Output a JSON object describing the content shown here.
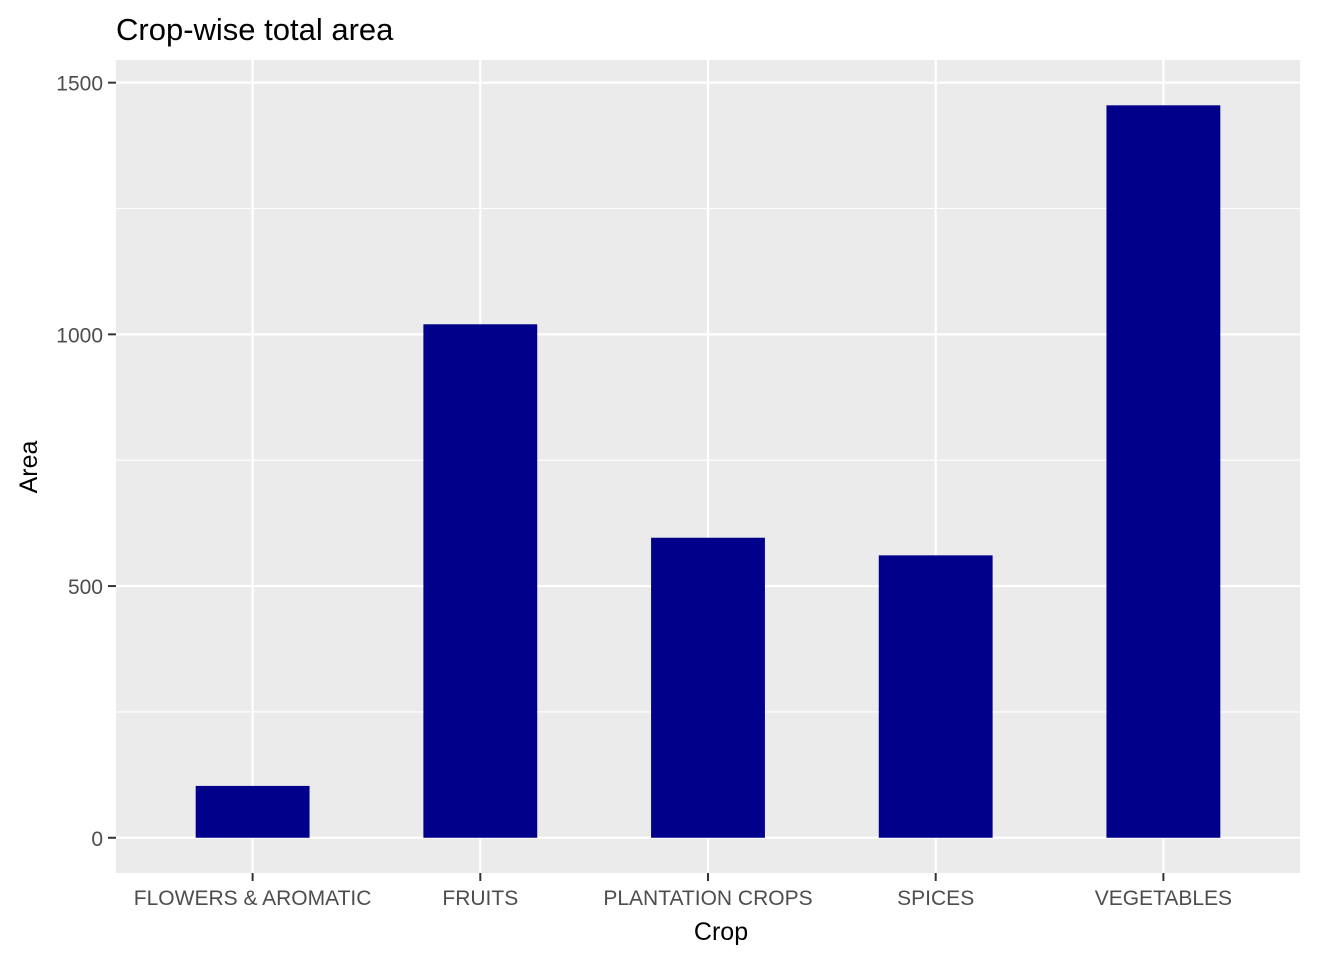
{
  "chart_data": {
    "type": "bar",
    "title": "Crop-wise total area",
    "xlabel": "Crop",
    "ylabel": "Area",
    "categories": [
      "FLOWERS & AROMATIC",
      "FRUITS",
      "PLANTATION CROPS",
      "SPICES",
      "VEGETABLES"
    ],
    "values": [
      103,
      1020,
      596,
      561,
      1455
    ],
    "ylim": [
      -70,
      1545
    ],
    "yticks": [
      0,
      500,
      1000,
      1500
    ],
    "ytick_labels": [
      "0",
      "500",
      "1000",
      "1500"
    ],
    "grid": true,
    "legend": "none",
    "colors": {
      "bar": "#00008b",
      "panel_background": "#ebebeb",
      "grid": "#ffffff",
      "tick_mark": "#333333"
    }
  }
}
